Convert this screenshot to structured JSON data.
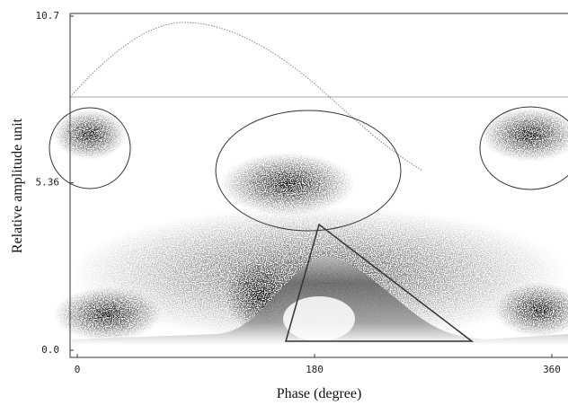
{
  "chart_data": {
    "type": "scatter",
    "x_label": "Phase (degree)",
    "y_label": "Relative amplitude unit",
    "xlim": [
      0,
      360
    ],
    "ylim": [
      0,
      10.7
    ],
    "xticks": [
      0,
      180,
      360
    ],
    "yticks": [
      {
        "value": 0,
        "label": "0.0"
      },
      5.36,
      10.7
    ]
  }
}
